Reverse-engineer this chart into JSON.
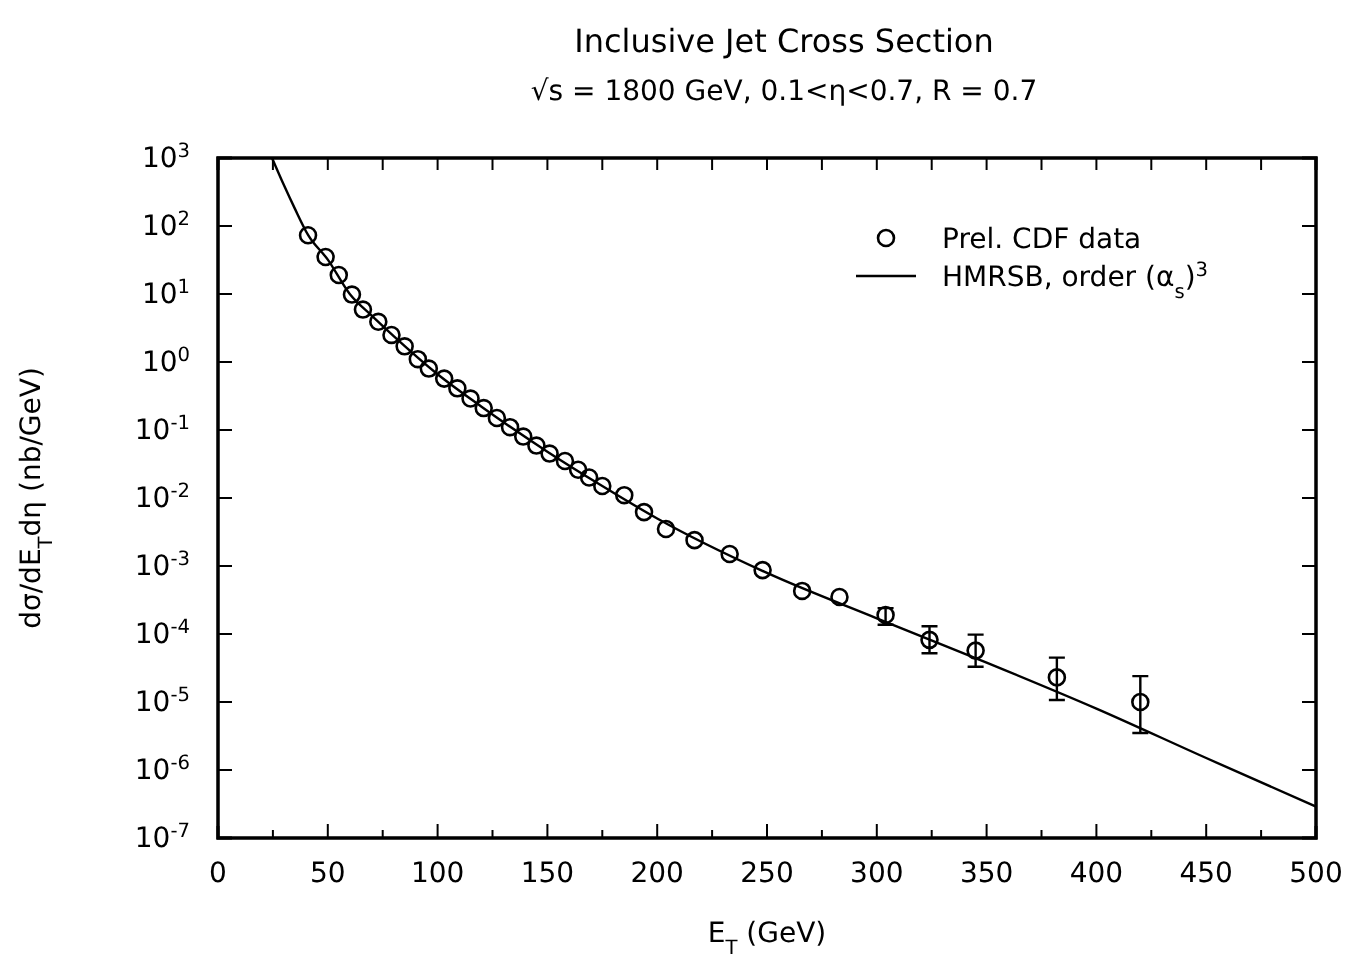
{
  "chart_data": {
    "type": "scatter",
    "title": "Inclusive Jet Cross Section",
    "subtitle": "√s = 1800 GeV, 0.1<η<0.7, R = 0.7",
    "xlabel": "E$_{T}$ (GeV)",
    "ylabel": "dσ/dE$_{T}$dη (nb/GeV)",
    "log": "y",
    "legend": "top right",
    "marker": "circle",
    "xlim": [
      0,
      500
    ],
    "ylim": [
      1e-07,
      1000
    ],
    "xticks": [
      0,
      {
        "value": 25,
        "label": null
      },
      50,
      {
        "value": 75,
        "label": null
      },
      100,
      {
        "value": 125,
        "label": null
      },
      150,
      {
        "value": 175,
        "label": null
      },
      200,
      {
        "value": 225,
        "label": null
      },
      250,
      {
        "value": 275,
        "label": null
      },
      300,
      {
        "value": 325,
        "label": null
      },
      350,
      {
        "value": 375,
        "label": null
      },
      400,
      {
        "value": 425,
        "label": null
      },
      450,
      {
        "value": 475,
        "label": null
      },
      500
    ],
    "yticks": [
      {
        "value": 1e-07,
        "label": "10$^{-7}$"
      },
      {
        "value": 1e-06,
        "label": "10$^{-6}$"
      },
      {
        "value": 1e-05,
        "label": "10$^{-5}$"
      },
      {
        "value": 0.0001,
        "label": "10$^{-4}$"
      },
      {
        "value": 0.001,
        "label": "10$^{-3}$"
      },
      {
        "value": 0.01,
        "label": "10$^{-2}$"
      },
      {
        "value": 0.1,
        "label": "10$^{-1}$"
      },
      {
        "value": 1,
        "label": "10$^{0}$"
      },
      {
        "value": 10,
        "label": "10$^{1}$"
      },
      {
        "value": 100,
        "label": "10$^{2}$"
      },
      {
        "value": 1000,
        "label": "10$^{3}$"
      }
    ],
    "series": [
      {
        "name": "Prel. CDF data",
        "color": "#000000",
        "x": [
          41,
          49,
          55,
          61,
          66,
          73,
          79,
          85,
          91,
          96,
          103,
          109,
          115,
          121,
          127,
          133,
          139,
          145,
          151,
          158,
          164,
          169,
          175,
          185,
          194,
          204,
          217,
          233,
          248,
          266,
          283,
          304,
          324,
          345,
          382,
          420
        ],
        "values": [
          73,
          35,
          19,
          9.8,
          5.9,
          3.9,
          2.5,
          1.7,
          1.1,
          0.8,
          0.57,
          0.41,
          0.29,
          0.21,
          0.15,
          0.11,
          0.08,
          0.059,
          0.045,
          0.035,
          0.026,
          0.02,
          0.015,
          0.011,
          0.0062,
          0.0035,
          0.0024,
          0.0015,
          0.00087,
          0.00043,
          0.00035,
          0.00019,
          8.2e-05,
          5.7e-05,
          2.3e-05,
          1e-05
        ],
        "errors": [
          null,
          null,
          null,
          null,
          null,
          null,
          null,
          null,
          null,
          null,
          null,
          null,
          null,
          null,
          null,
          null,
          null,
          null,
          null,
          null,
          null,
          null,
          null,
          null,
          null,
          null,
          null,
          null,
          null,
          null,
          null,
          [
            0.000137,
            0.00024
          ],
          [
            5.2e-05,
            0.00013
          ],
          [
            3.3e-05,
            9.8e-05
          ],
          [
            1.07e-05,
            4.5e-05
          ],
          [
            3.5e-06,
            2.4e-05
          ]
        ]
      },
      {
        "name": "HMRSB, order (α$_{s}$)$^{3}$",
        "type": "line",
        "color": "#000000",
        "line_style": "solid",
        "marker": "none",
        "x": [
          24.6,
          30,
          35,
          41,
          50,
          60,
          70,
          80,
          100,
          120,
          150,
          175,
          200,
          250,
          300,
          350,
          400,
          450,
          500
        ],
        "values": [
          1000,
          400,
          180,
          74,
          32,
          10,
          4.8,
          2.4,
          0.66,
          0.22,
          0.048,
          0.015,
          0.005,
          0.00079,
          0.00017,
          3.8e-05,
          8e-06,
          1.5e-06,
          2.9e-07
        ]
      }
    ]
  }
}
